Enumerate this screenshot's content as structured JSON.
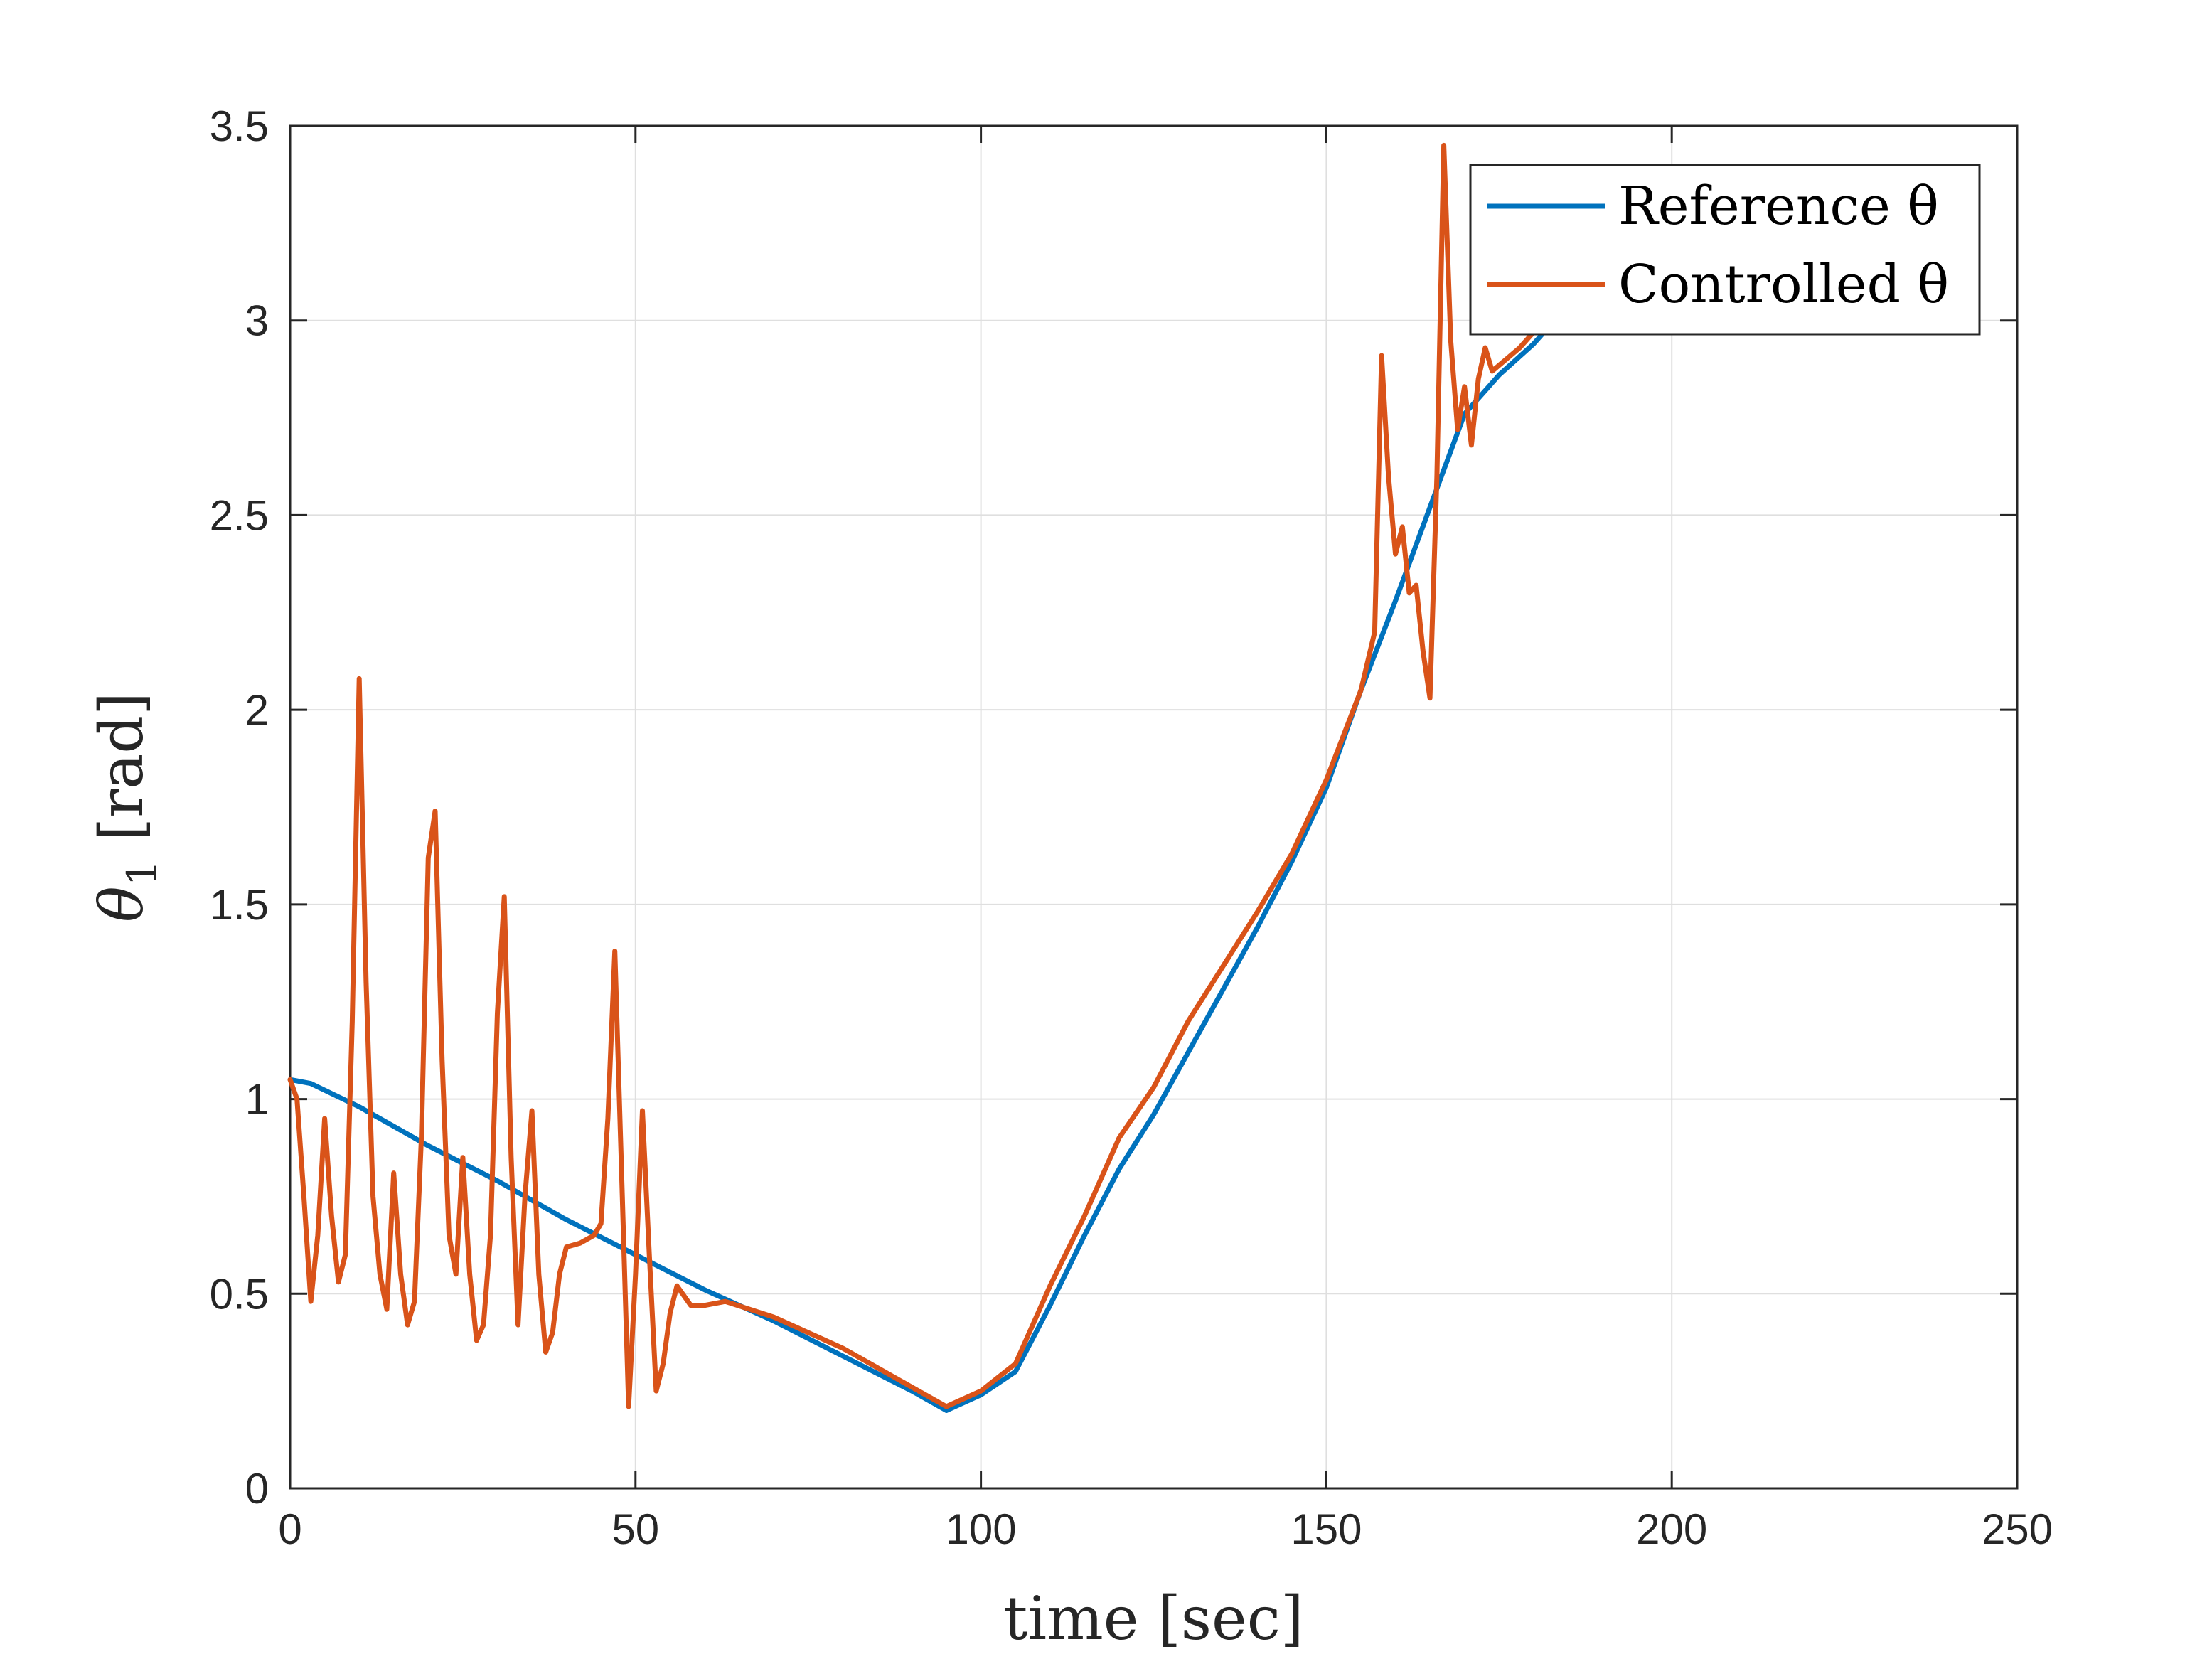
{
  "chart_data": {
    "type": "line",
    "xlabel": "time [sec]",
    "ylabel_main": "θ",
    "ylabel_sub": "1",
    "ylabel_unit": "[rad]",
    "xlim": [
      0,
      250
    ],
    "ylim": [
      0,
      3.5
    ],
    "xticks": [
      0,
      50,
      100,
      150,
      200,
      250
    ],
    "yticks": [
      0,
      0.5,
      1,
      1.5,
      2,
      2.5,
      3,
      3.5
    ],
    "xtick_labels": [
      "0",
      "50",
      "100",
      "150",
      "200",
      "250"
    ],
    "ytick_labels": [
      "0",
      "0.5",
      "1",
      "1.5",
      "2",
      "2.5",
      "3",
      "3.5"
    ],
    "grid": true,
    "legend_position": "top-right",
    "series": [
      {
        "name": "Reference θ",
        "color": "#0072BD",
        "points": [
          [
            0,
            1.05
          ],
          [
            3,
            1.04
          ],
          [
            10,
            0.98
          ],
          [
            20,
            0.88
          ],
          [
            30,
            0.79
          ],
          [
            40,
            0.69
          ],
          [
            50,
            0.6
          ],
          [
            60,
            0.51
          ],
          [
            70,
            0.43
          ],
          [
            80,
            0.34
          ],
          [
            90,
            0.25
          ],
          [
            95,
            0.2
          ],
          [
            100,
            0.24
          ],
          [
            105,
            0.3
          ],
          [
            110,
            0.47
          ],
          [
            115,
            0.65
          ],
          [
            120,
            0.82
          ],
          [
            125,
            0.96
          ],
          [
            130,
            1.12
          ],
          [
            135,
            1.28
          ],
          [
            140,
            1.44
          ],
          [
            145,
            1.61
          ],
          [
            150,
            1.8
          ],
          [
            155,
            2.05
          ],
          [
            160,
            2.28
          ],
          [
            165,
            2.52
          ],
          [
            170,
            2.76
          ],
          [
            175,
            2.86
          ],
          [
            180,
            2.94
          ],
          [
            183,
            3.0
          ]
        ]
      },
      {
        "name": "Controlled θ",
        "color": "#D95319",
        "points": [
          [
            0,
            1.05
          ],
          [
            1,
            1.0
          ],
          [
            2,
            0.75
          ],
          [
            3,
            0.48
          ],
          [
            4,
            0.65
          ],
          [
            5,
            0.95
          ],
          [
            6,
            0.7
          ],
          [
            7,
            0.53
          ],
          [
            8,
            0.6
          ],
          [
            9,
            1.2
          ],
          [
            10,
            2.08
          ],
          [
            11,
            1.3
          ],
          [
            12,
            0.75
          ],
          [
            13,
            0.55
          ],
          [
            14,
            0.46
          ],
          [
            15,
            0.81
          ],
          [
            16,
            0.55
          ],
          [
            17,
            0.42
          ],
          [
            18,
            0.48
          ],
          [
            19,
            0.9
          ],
          [
            20,
            1.62
          ],
          [
            21,
            1.74
          ],
          [
            22,
            1.1
          ],
          [
            23,
            0.65
          ],
          [
            24,
            0.55
          ],
          [
            25,
            0.85
          ],
          [
            26,
            0.55
          ],
          [
            27,
            0.38
          ],
          [
            28,
            0.42
          ],
          [
            29,
            0.65
          ],
          [
            30,
            1.22
          ],
          [
            31,
            1.52
          ],
          [
            32,
            0.85
          ],
          [
            33,
            0.42
          ],
          [
            34,
            0.75
          ],
          [
            35,
            0.97
          ],
          [
            36,
            0.55
          ],
          [
            37,
            0.35
          ],
          [
            38,
            0.4
          ],
          [
            39,
            0.55
          ],
          [
            40,
            0.62
          ],
          [
            42,
            0.63
          ],
          [
            44,
            0.65
          ],
          [
            45,
            0.68
          ],
          [
            46,
            0.95
          ],
          [
            47,
            1.38
          ],
          [
            48,
            0.8
          ],
          [
            49,
            0.21
          ],
          [
            50,
            0.55
          ],
          [
            51,
            0.97
          ],
          [
            52,
            0.6
          ],
          [
            53,
            0.25
          ],
          [
            54,
            0.32
          ],
          [
            55,
            0.45
          ],
          [
            56,
            0.52
          ],
          [
            58,
            0.47
          ],
          [
            60,
            0.47
          ],
          [
            63,
            0.48
          ],
          [
            70,
            0.44
          ],
          [
            80,
            0.36
          ],
          [
            90,
            0.26
          ],
          [
            95,
            0.21
          ],
          [
            100,
            0.25
          ],
          [
            105,
            0.32
          ],
          [
            110,
            0.52
          ],
          [
            115,
            0.7
          ],
          [
            120,
            0.9
          ],
          [
            125,
            1.03
          ],
          [
            130,
            1.2
          ],
          [
            135,
            1.34
          ],
          [
            140,
            1.48
          ],
          [
            145,
            1.63
          ],
          [
            150,
            1.82
          ],
          [
            155,
            2.05
          ],
          [
            157,
            2.2
          ],
          [
            158,
            2.91
          ],
          [
            159,
            2.6
          ],
          [
            160,
            2.4
          ],
          [
            161,
            2.47
          ],
          [
            162,
            2.3
          ],
          [
            163,
            2.32
          ],
          [
            164,
            2.15
          ],
          [
            165,
            2.03
          ],
          [
            166,
            2.6
          ],
          [
            167,
            3.45
          ],
          [
            168,
            2.95
          ],
          [
            169,
            2.72
          ],
          [
            170,
            2.83
          ],
          [
            171,
            2.68
          ],
          [
            172,
            2.85
          ],
          [
            173,
            2.93
          ],
          [
            174,
            2.87
          ],
          [
            176,
            2.9
          ],
          [
            178,
            2.93
          ],
          [
            180,
            2.97
          ],
          [
            183,
            3.0
          ]
        ]
      }
    ]
  }
}
